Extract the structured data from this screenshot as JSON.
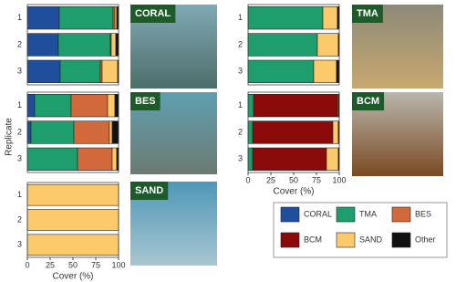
{
  "chart_data": {
    "type": "bar",
    "orientation": "horizontal",
    "stacked": true,
    "ylabel": "Replicate",
    "xlabel": "Cover (%)",
    "xlim": [
      0,
      100
    ],
    "xticks": [
      0,
      25,
      50,
      75,
      100
    ],
    "panels": [
      "CORAL",
      "BES",
      "SAND",
      "TMA",
      "BCM"
    ],
    "categories": [
      "1",
      "2",
      "3",
      "1",
      "2",
      "3",
      "1",
      "2",
      "3",
      "1",
      "2",
      "3",
      "1",
      "2",
      "3"
    ],
    "series": [
      {
        "name": "CORAL",
        "color": "#1f4e9c",
        "values": [
          35,
          34,
          36,
          8,
          4,
          0,
          0,
          0,
          0,
          0,
          0,
          0,
          0,
          0,
          0
        ]
      },
      {
        "name": "TMA",
        "color": "#1e9e6c",
        "values": [
          59,
          57,
          44,
          40,
          47,
          55,
          0,
          0,
          0,
          82,
          76,
          72,
          6,
          5,
          5
        ]
      },
      {
        "name": "BES",
        "color": "#d2693a",
        "values": [
          2,
          1,
          2,
          40,
          39,
          38,
          0,
          0,
          0,
          0,
          0,
          0,
          0,
          0,
          0
        ]
      },
      {
        "name": "BCM",
        "color": "#8b0b0b",
        "values": [
          0,
          0,
          0,
          0,
          0,
          0,
          0,
          0,
          0,
          0,
          0,
          0,
          92,
          88,
          81
        ]
      },
      {
        "name": "SAND",
        "color": "#fdca6b",
        "values": [
          2,
          5,
          17,
          8,
          3,
          5,
          100,
          100,
          100,
          16,
          23,
          25,
          1,
          6,
          13
        ]
      },
      {
        "name": "Other",
        "color": "#111111",
        "values": [
          2,
          3,
          1,
          4,
          7,
          2,
          0,
          0,
          0,
          2,
          1,
          3,
          1,
          1,
          1
        ]
      }
    ]
  }
}
